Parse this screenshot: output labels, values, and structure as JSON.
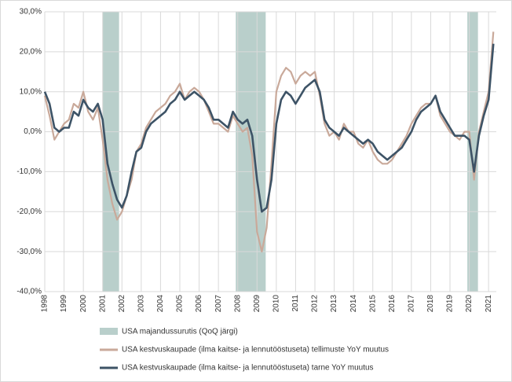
{
  "chart_data": {
    "type": "line",
    "x": [
      1998,
      1998.25,
      1998.5,
      1998.75,
      1999,
      1999.25,
      1999.5,
      1999.75,
      2000,
      2000.25,
      2000.5,
      2000.75,
      2001,
      2001.25,
      2001.5,
      2001.75,
      2002,
      2002.25,
      2002.5,
      2002.75,
      2003,
      2003.25,
      2003.5,
      2003.75,
      2004,
      2004.25,
      2004.5,
      2004.75,
      2005,
      2005.25,
      2005.5,
      2005.75,
      2006,
      2006.25,
      2006.5,
      2006.75,
      2007,
      2007.25,
      2007.5,
      2007.75,
      2008,
      2008.25,
      2008.5,
      2008.75,
      2009,
      2009.25,
      2009.5,
      2009.75,
      2010,
      2010.25,
      2010.5,
      2010.75,
      2011,
      2011.25,
      2011.5,
      2011.75,
      2012,
      2012.25,
      2012.5,
      2012.75,
      2013,
      2013.25,
      2013.5,
      2013.75,
      2014,
      2014.25,
      2014.5,
      2014.75,
      2015,
      2015.25,
      2015.5,
      2015.75,
      2016,
      2016.25,
      2016.5,
      2016.75,
      2017,
      2017.25,
      2017.5,
      2017.75,
      2018,
      2018.25,
      2018.5,
      2018.75,
      2019,
      2019.25,
      2019.5,
      2019.75,
      2020,
      2020.25,
      2020.5,
      2020.75,
      2021,
      2021.25
    ],
    "series": [
      {
        "name": "USA kestvuskaupade (ilma kaitse- ja lennutööstuseta) tellimuste YoY muutus",
        "color": "#c9a99a",
        "values": [
          9,
          4,
          -2,
          0,
          2,
          3,
          7,
          6,
          10,
          5,
          3,
          6,
          -2,
          -12,
          -18,
          -22,
          -20,
          -16,
          -12,
          -5,
          -3,
          1,
          3,
          5,
          6,
          7,
          9,
          10,
          12,
          8,
          10,
          11,
          10,
          8,
          5,
          2,
          2,
          1,
          0,
          4,
          2,
          0,
          1,
          -6,
          -25,
          -30,
          -24,
          -8,
          10,
          14,
          16,
          15,
          12,
          14,
          15,
          14,
          15,
          9,
          2,
          -1,
          0,
          -2,
          2,
          0,
          0,
          -3,
          -4,
          -2,
          -5,
          -7,
          -8,
          -8,
          -7,
          -5,
          -3,
          -1,
          2,
          4,
          6,
          7,
          7,
          9,
          4,
          2,
          0,
          -1,
          -2,
          0,
          0,
          -12,
          0,
          5,
          10,
          25
        ]
      },
      {
        "name": "USA kestvuskaupade (ilma kaitse- ja lennutööstuseta) tarne YoY muutus",
        "color": "#3d5366",
        "values": [
          10,
          7,
          1,
          0,
          1,
          1,
          5,
          4,
          8,
          6,
          5,
          7,
          3,
          -8,
          -13,
          -17,
          -19,
          -16,
          -10,
          -5,
          -4,
          0,
          2,
          3,
          4,
          5,
          7,
          8,
          10,
          8,
          9,
          10,
          9,
          8,
          6,
          3,
          3,
          2,
          1,
          5,
          3,
          2,
          3,
          -1,
          -12,
          -20,
          -19,
          -12,
          2,
          8,
          10,
          9,
          7,
          9,
          11,
          12,
          13,
          10,
          3,
          1,
          0,
          -1,
          1,
          0,
          -1,
          -2,
          -3,
          -2,
          -3,
          -5,
          -6,
          -7,
          -6,
          -5,
          -4,
          -2,
          0,
          3,
          5,
          6,
          7,
          9,
          5,
          3,
          1,
          -1,
          -1,
          -1,
          -2,
          -10,
          -1,
          4,
          8,
          22
        ]
      }
    ],
    "shading": {
      "name": "USA majandussurutis (QoQ järgi)",
      "color": "#b9cfcb",
      "ranges": [
        [
          2001.0,
          2001.85
        ],
        [
          2007.9,
          2009.45
        ],
        [
          2019.9,
          2020.45
        ]
      ]
    },
    "xlim": [
      1998,
      2021.4
    ],
    "xticks": [
      1998,
      1999,
      2000,
      2001,
      2002,
      2003,
      2004,
      2005,
      2006,
      2007,
      2008,
      2009,
      2010,
      2011,
      2012,
      2013,
      2014,
      2015,
      2016,
      2017,
      2018,
      2019,
      2020,
      2021
    ],
    "ylim": [
      -40,
      30
    ],
    "yticks": [
      {
        "value": -40,
        "label": "-40,0%"
      },
      {
        "value": -30,
        "label": "-30,0%"
      },
      {
        "value": -20,
        "label": "-20,0%"
      },
      {
        "value": -10,
        "label": "-10,0%"
      },
      {
        "value": 0,
        "label": "0,0%"
      },
      {
        "value": 10,
        "label": "10,0%"
      },
      {
        "value": 20,
        "label": "20,0%"
      },
      {
        "value": 30,
        "label": "30,0%"
      }
    ],
    "grid": true
  }
}
